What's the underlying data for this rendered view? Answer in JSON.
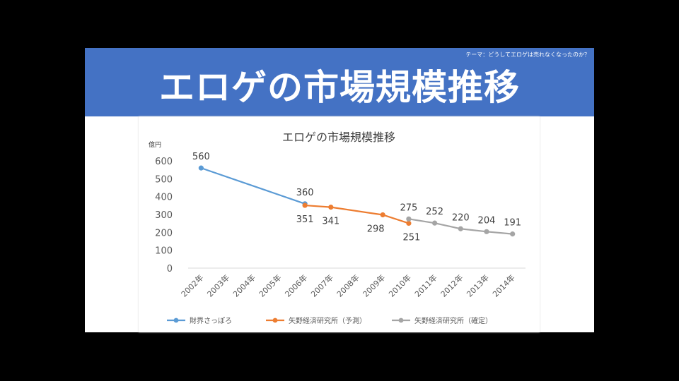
{
  "slide": {
    "subtitle": "テーマ：どうしてエロゲは売れなくなったのか？",
    "title": "エロゲの市場規模推移"
  },
  "colors": {
    "banner": "#4472c4",
    "series_1": "#5b9bd5",
    "series_2": "#ed7d31",
    "series_3": "#a5a5a5"
  },
  "chart_data": {
    "type": "line",
    "title": "エロゲの市場規模推移",
    "ylabel": "億円",
    "xlabel": "",
    "ylim": [
      0,
      600
    ],
    "yticks": [
      0,
      100,
      200,
      300,
      400,
      500,
      600
    ],
    "grid": false,
    "legend": "bottom",
    "categories": [
      "2002年",
      "2003年",
      "2004年",
      "2005年",
      "2006年",
      "2007年",
      "2008年",
      "2009年",
      "2010年",
      "2011年",
      "2012年",
      "2013年",
      "2014年"
    ],
    "series": [
      {
        "name": "財界さっぽろ",
        "color": "#5b9bd5",
        "values": [
          560,
          null,
          null,
          null,
          360,
          null,
          null,
          null,
          null,
          null,
          null,
          null,
          null
        ],
        "labels": [
          "560",
          null,
          null,
          null,
          "360",
          null,
          null,
          null,
          null,
          null,
          null,
          null,
          null
        ]
      },
      {
        "name": "矢野経済研究所（予測）",
        "color": "#ed7d31",
        "values": [
          null,
          null,
          null,
          null,
          351,
          341,
          null,
          298,
          251,
          null,
          null,
          null,
          null
        ],
        "labels": [
          null,
          null,
          null,
          null,
          "351",
          "341",
          null,
          "298",
          "251",
          null,
          null,
          null,
          null
        ]
      },
      {
        "name": "矢野経済研究所（確定）",
        "color": "#a5a5a5",
        "values": [
          null,
          null,
          null,
          null,
          null,
          null,
          null,
          null,
          275,
          252,
          220,
          204,
          191
        ],
        "labels": [
          null,
          null,
          null,
          null,
          null,
          null,
          null,
          null,
          "275",
          "252",
          "220",
          "204",
          "191"
        ]
      }
    ]
  }
}
